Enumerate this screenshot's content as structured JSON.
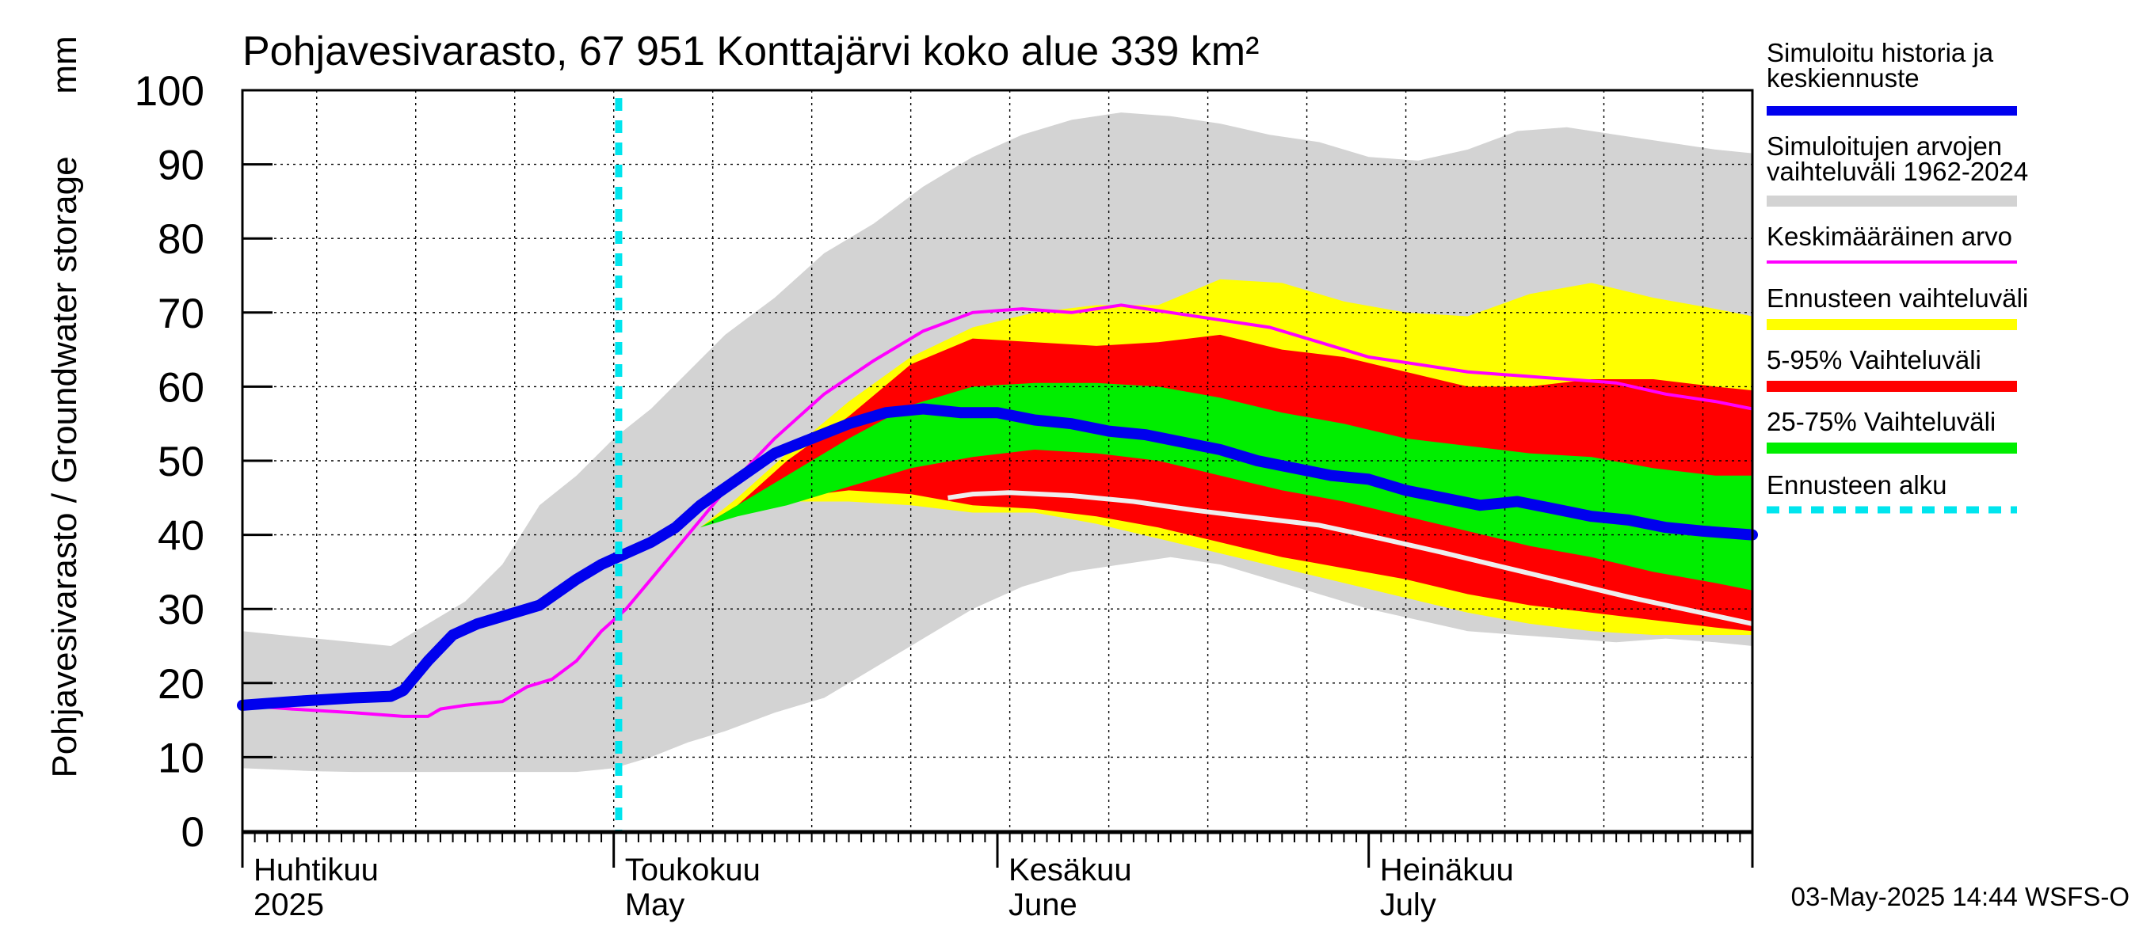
{
  "chart_data": {
    "type": "area",
    "title": "Pohjavesivarasto, 67 951 Konttajärvi koko alue 339 km²",
    "ylabel": "Pohjavesivarasto / Groundwater storage",
    "yunit": "mm",
    "ylim": [
      0,
      100
    ],
    "yticks": [
      0,
      10,
      20,
      30,
      40,
      50,
      60,
      70,
      80,
      90,
      100
    ],
    "x_unit": "day of year 2025 (Apr 1 = 91)",
    "xlim": [
      91,
      213
    ],
    "grid": true,
    "months": [
      {
        "fi": "Huhtikuu",
        "en": "2025",
        "day": 91
      },
      {
        "fi": "Toukokuu",
        "en": "May",
        "day": 121
      },
      {
        "fi": "Kesäkuu",
        "en": "June",
        "day": 152
      },
      {
        "fi": "Heinäkuu",
        "en": "July",
        "day": 182
      }
    ],
    "forecast_start_day": 121.4,
    "timestamp": "03-May-2025 14:44 WSFS-O",
    "legend": [
      {
        "key": "sim",
        "label": [
          "Simuloitu historia ja",
          "keskiennuste"
        ],
        "color": "#0000ee",
        "style": "thick"
      },
      {
        "key": "range",
        "label": [
          "Simuloitujen arvojen",
          "vaihteluväli 1962-2024"
        ],
        "color": "#d3d3d3",
        "style": "band"
      },
      {
        "key": "mean",
        "label": [
          "Keskimääräinen arvo"
        ],
        "color": "#ff00ff",
        "style": "thin"
      },
      {
        "key": "fc_range",
        "label": [
          "Ennusteen vaihteluväli"
        ],
        "color": "#ffff00",
        "style": "band"
      },
      {
        "key": "p5_95",
        "label": [
          "5-95% Vaihteluväli"
        ],
        "color": "#ff0000",
        "style": "band"
      },
      {
        "key": "p25_75",
        "label": [
          "25-75% Vaihteluväli"
        ],
        "color": "#00ee00",
        "style": "band"
      },
      {
        "key": "fc_start",
        "label": [
          "Ennusteen alku"
        ],
        "color": "#00e5ee",
        "style": "dotted"
      }
    ],
    "series": {
      "hist_range": {
        "x": [
          91,
          94,
          97,
          100,
          103,
          106,
          109,
          112,
          115,
          118,
          121,
          124,
          127,
          130,
          134,
          138,
          142,
          146,
          150,
          154,
          158,
          162,
          166,
          170,
          174,
          178,
          182,
          186,
          190,
          194,
          198,
          202,
          206,
          210,
          213
        ],
        "upper": [
          27,
          26.5,
          26,
          25.5,
          25,
          28,
          31,
          36,
          44,
          48,
          53,
          57,
          62,
          67,
          72,
          78,
          82,
          87,
          91,
          94,
          96,
          97,
          96.5,
          95.5,
          94,
          93,
          91,
          90.5,
          92,
          94.5,
          95,
          94,
          93,
          92,
          91.5
        ],
        "lower": [
          8.5,
          8.3,
          8.1,
          8,
          8,
          8,
          8,
          8,
          8,
          8,
          8.5,
          10,
          12,
          13.5,
          16,
          18,
          22,
          26,
          30,
          33,
          35,
          36,
          37,
          36,
          34,
          32,
          30,
          28.5,
          27,
          26.5,
          26,
          25.5,
          26,
          25.5,
          25
        ]
      },
      "fc_range": {
        "x": [
          128,
          131,
          135,
          140,
          145,
          150,
          155,
          160,
          165,
          170,
          175,
          180,
          185,
          190,
          195,
          200,
          205,
          210,
          213
        ],
        "upper": [
          41,
          45,
          51,
          58,
          64,
          68,
          70,
          71,
          71,
          74.5,
          74,
          71.5,
          70,
          69.5,
          72.5,
          74,
          72,
          70.5,
          69.5
        ],
        "lower": [
          41,
          43,
          44.5,
          44.5,
          44,
          43,
          43,
          41.5,
          39.5,
          37.5,
          35.5,
          33.5,
          31.5,
          29.5,
          28,
          27,
          26.5,
          26.5,
          26.5
        ]
      },
      "p5_95": {
        "x": [
          128,
          131,
          135,
          140,
          145,
          150,
          155,
          160,
          165,
          170,
          175,
          180,
          185,
          190,
          195,
          200,
          205,
          210,
          213
        ],
        "upper": [
          41,
          44,
          50,
          56,
          63,
          66.5,
          66,
          65.5,
          66,
          67,
          65,
          64,
          62,
          60,
          60,
          61,
          61,
          60,
          59.5
        ],
        "lower": [
          41,
          43,
          45,
          46,
          45.5,
          44,
          43.5,
          42.5,
          41,
          39,
          37,
          35.5,
          34,
          32,
          30.5,
          29.5,
          28.5,
          27.5,
          27
        ]
      },
      "p25_75": {
        "x": [
          128,
          131,
          135,
          140,
          145,
          150,
          155,
          160,
          165,
          170,
          175,
          180,
          185,
          190,
          195,
          200,
          205,
          210,
          213
        ],
        "upper": [
          41,
          44,
          48,
          53,
          57.5,
          60,
          60.5,
          60.5,
          60,
          58.5,
          56.5,
          55,
          53,
          52,
          51,
          50.5,
          49,
          48,
          48
        ],
        "lower": [
          41,
          42.5,
          44,
          46.5,
          49,
          50.5,
          51.5,
          51,
          50,
          48,
          46,
          44.5,
          42.5,
          40.5,
          38.5,
          37,
          35,
          33.5,
          32.5
        ]
      },
      "median_low": {
        "x": [
          148,
          150,
          153,
          158,
          163,
          168,
          173,
          178,
          183,
          188,
          193,
          198,
          203,
          208,
          213
        ],
        "y": [
          45,
          45.5,
          45.7,
          45.3,
          44.5,
          43.3,
          42.3,
          41.3,
          39.5,
          37.6,
          35.6,
          33.6,
          31.6,
          29.8,
          28
        ]
      },
      "mean": {
        "x": [
          91,
          95,
          100,
          104,
          106,
          107,
          109,
          112,
          114,
          116,
          118,
          120,
          122,
          124,
          126,
          128,
          130,
          134,
          138,
          142,
          146,
          150,
          154,
          158,
          162,
          166,
          170,
          174,
          178,
          182,
          186,
          190,
          194,
          198,
          202,
          206,
          210,
          213
        ],
        "y": [
          17,
          16.5,
          16,
          15.5,
          15.5,
          16.5,
          17,
          17.5,
          19.5,
          20.5,
          23,
          27,
          30,
          34,
          38,
          42,
          46,
          53,
          59,
          63.5,
          67.5,
          70,
          70.5,
          70,
          71,
          70,
          69,
          68,
          66,
          64,
          63,
          62,
          61.5,
          61,
          60.5,
          59,
          58,
          57
        ]
      },
      "simulated": {
        "x": [
          91,
          95,
          100,
          103,
          104,
          106,
          108,
          110,
          112,
          115,
          118,
          120,
          122,
          124,
          126,
          128,
          131,
          134,
          137,
          140,
          143,
          146,
          149,
          152,
          155,
          158,
          161,
          164,
          167,
          170,
          173,
          176,
          179,
          182,
          185,
          188,
          191,
          194,
          197,
          200,
          203,
          206,
          209,
          213
        ],
        "y": [
          17,
          17.5,
          18,
          18.2,
          19,
          23,
          26.5,
          28,
          29,
          30.5,
          34,
          36,
          37.5,
          39,
          41,
          44,
          47.5,
          51,
          53,
          55,
          56.5,
          57,
          56.5,
          56.5,
          55.5,
          55,
          54,
          53.5,
          52.5,
          51.5,
          50,
          49,
          48,
          47.5,
          46,
          45,
          44,
          44.5,
          43.5,
          42.5,
          42,
          41,
          40.5,
          40
        ]
      }
    }
  }
}
